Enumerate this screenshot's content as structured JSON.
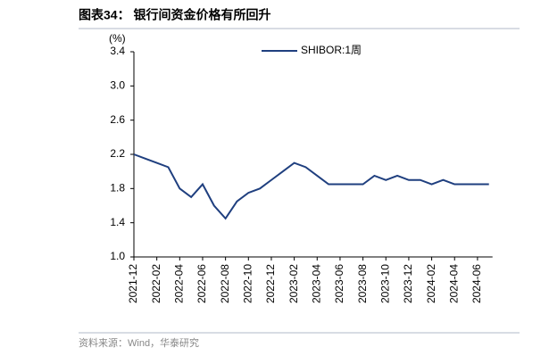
{
  "chart_data": {
    "type": "line",
    "title": "图表34：  银行间资金价格有所回升",
    "y_label": "(%)",
    "source": "资料来源：Wind，华泰研究",
    "x": [
      "2021-12",
      "2022-01",
      "2022-02",
      "2022-03",
      "2022-04",
      "2022-05",
      "2022-06",
      "2022-07",
      "2022-08",
      "2022-09",
      "2022-10",
      "2022-11",
      "2022-12",
      "2023-01",
      "2023-02",
      "2023-03",
      "2023-04",
      "2023-05",
      "2023-06",
      "2023-07",
      "2023-08",
      "2023-09",
      "2023-10",
      "2023-11",
      "2023-12",
      "2024-01",
      "2024-02",
      "2024-03",
      "2024-04",
      "2024-05",
      "2024-06",
      "2024-07"
    ],
    "series": [
      {
        "name": "SHIBOR:1周",
        "color": "#1f3f7f",
        "values": [
          2.2,
          2.15,
          2.1,
          2.05,
          1.8,
          1.7,
          1.85,
          1.6,
          1.45,
          1.65,
          1.75,
          1.8,
          1.9,
          2.0,
          2.1,
          2.05,
          1.95,
          1.85,
          1.85,
          1.85,
          1.85,
          1.95,
          1.9,
          1.95,
          1.9,
          1.9,
          1.85,
          1.9,
          1.85,
          1.85,
          1.85,
          1.85
        ]
      }
    ],
    "xticks": [
      "2021-12",
      "2022-02",
      "2022-04",
      "2022-06",
      "2022-08",
      "2022-10",
      "2022-12",
      "2023-02",
      "2023-04",
      "2023-06",
      "2023-08",
      "2023-10",
      "2023-12",
      "2024-02",
      "2024-04",
      "2024-06"
    ],
    "ylim": [
      1.0,
      3.4
    ],
    "yticks": [
      {
        "value": 1.0,
        "label": "1.0"
      },
      {
        "value": 1.4,
        "label": "1.4"
      },
      {
        "value": 1.8,
        "label": "1.8"
      },
      {
        "value": 2.2,
        "label": "2.2"
      },
      {
        "value": 2.6,
        "label": "2.6"
      },
      {
        "value": 3.0,
        "label": "3.0"
      },
      {
        "value": 3.4,
        "label": "3.4"
      }
    ],
    "legend": "top"
  }
}
